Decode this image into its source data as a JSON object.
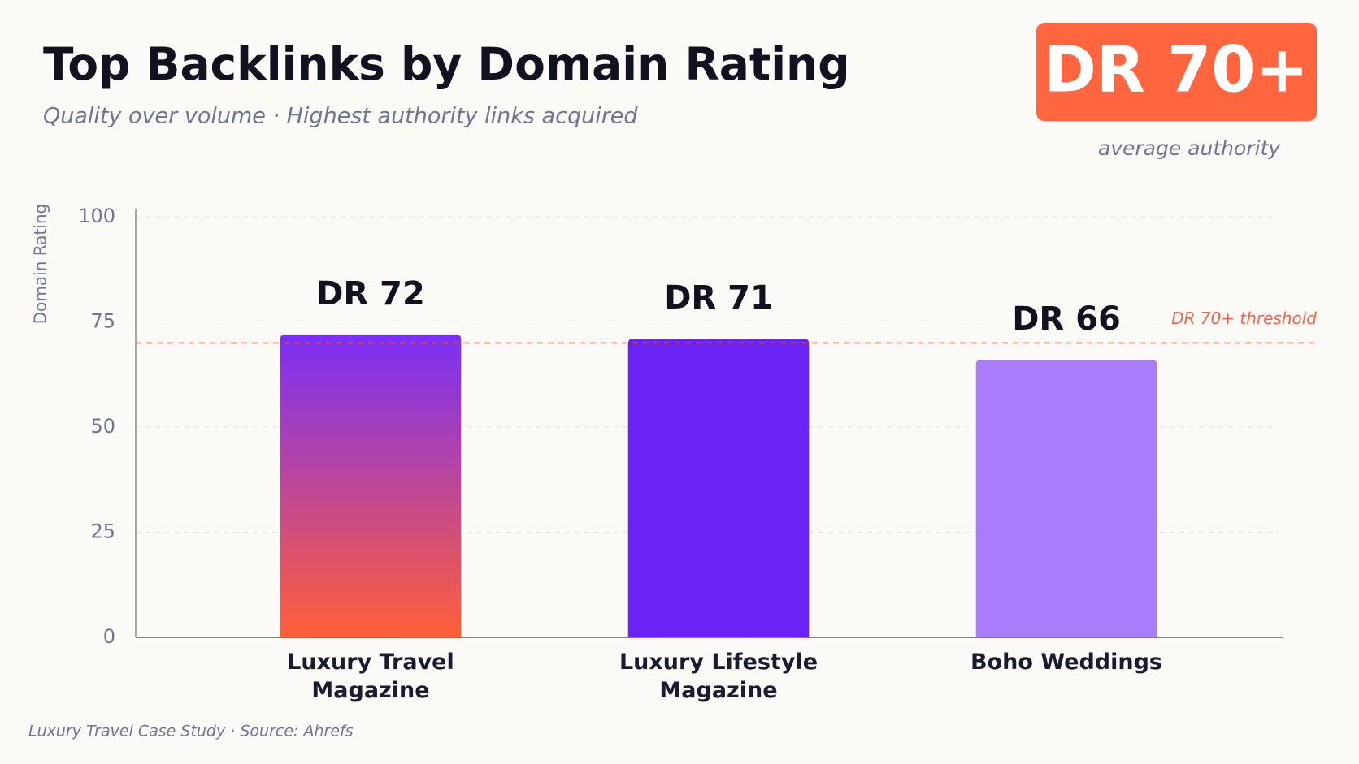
{
  "chart_data": {
    "type": "bar",
    "title": "Top Backlinks by Domain Rating",
    "subtitle": "Quality over volume · Highest authority links acquired",
    "badge": "DR 70+",
    "badge_caption": "average authority",
    "ylabel": "Domain Rating",
    "categories": [
      "Luxury Travel Magazine",
      "Luxury Lifestyle Magazine",
      "Boho Weddings"
    ],
    "values": [
      72,
      71,
      66
    ],
    "value_labels": [
      "DR 72",
      "DR 71",
      "DR 66"
    ],
    "colors": [
      [
        "#7b2ff7",
        "#ff5f38"
      ],
      "#6a22f5",
      "#a97cfb"
    ],
    "ylim": [
      0,
      100
    ],
    "yticks": [
      0,
      25,
      50,
      75,
      100
    ],
    "grid": true,
    "threshold": {
      "value": 70,
      "label": "DR 70+ threshold",
      "color": "#f0644a"
    },
    "footer": "Luxury Travel Case Study · Source: Ahrefs"
  }
}
